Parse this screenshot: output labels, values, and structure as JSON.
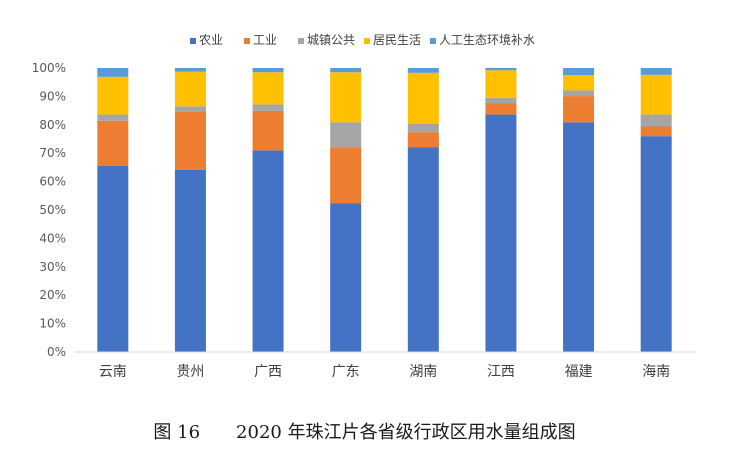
{
  "caption": "图 16　　2020 年珠江片各省级行政区用水量组成图",
  "chart_data": {
    "type": "bar",
    "stacked": true,
    "percent": true,
    "categories": [
      "云南",
      "贵州",
      "广西",
      "广东",
      "湖南",
      "江西",
      "福建",
      "海南"
    ],
    "series": [
      {
        "name": "农业",
        "color": "#4472C4",
        "values": [
          65.5,
          64.2,
          71.0,
          52.3,
          72.0,
          83.6,
          80.9,
          76.0
        ]
      },
      {
        "name": "工业",
        "color": "#ED7D31",
        "values": [
          15.9,
          20.3,
          13.9,
          19.7,
          5.4,
          3.9,
          9.2,
          3.4
        ]
      },
      {
        "name": "城镇公共",
        "color": "#A5A5A5",
        "values": [
          2.2,
          2.0,
          2.3,
          8.9,
          3.0,
          2.0,
          2.0,
          4.2
        ]
      },
      {
        "name": "居民生活",
        "color": "#FFC000",
        "values": [
          13.3,
          12.2,
          11.3,
          17.6,
          17.9,
          9.7,
          5.4,
          14.0
        ]
      },
      {
        "name": "人工生态环境补水",
        "color": "#5B9BD5",
        "values": [
          3.1,
          1.3,
          1.5,
          1.5,
          1.7,
          0.8,
          2.5,
          2.4
        ]
      }
    ],
    "y_ticks": [
      "0%",
      "10%",
      "20%",
      "30%",
      "40%",
      "50%",
      "60%",
      "70%",
      "80%",
      "90%",
      "100%"
    ],
    "ylim": [
      0,
      100
    ],
    "legend_position": "top",
    "grid": false
  }
}
